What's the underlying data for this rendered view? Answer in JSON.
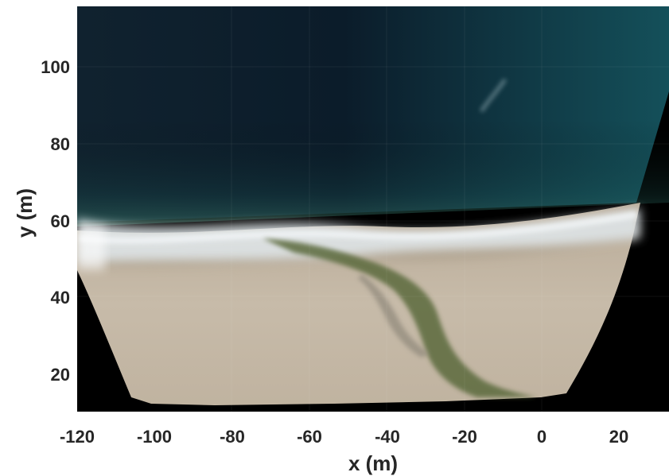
{
  "figure": {
    "x_axis": {
      "label": "x (m)",
      "range": [
        -120,
        33
      ],
      "ticks": [
        -120,
        -100,
        -80,
        -60,
        -40,
        -20,
        0,
        20
      ]
    },
    "y_axis": {
      "label": "y (m)",
      "range": [
        10,
        115
      ],
      "ticks": [
        20,
        40,
        60,
        80,
        100
      ]
    },
    "image": {
      "description": "rectified aerial orthomosaic of a beach with a tidal channel crossing the sand into the ocean",
      "colors": {
        "deep_water": "#0b1c2a",
        "shelf_water": "#14505a",
        "surf": "#c9d3d8",
        "sand": "#c2b5a1",
        "channel": "#5c6b3c",
        "nodata": "#000000"
      }
    }
  }
}
